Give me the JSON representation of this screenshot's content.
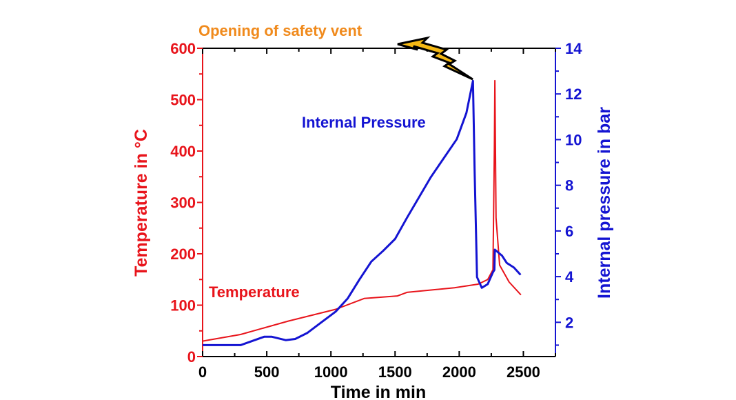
{
  "chart_data": {
    "type": "line",
    "title": "",
    "xlabel": "Time in min",
    "ylabel_left": "Temperature in °C",
    "ylabel_right": "Internal pressure in bar",
    "xlim": [
      0,
      2750
    ],
    "ylim_left": [
      0,
      600
    ],
    "ylim_right": [
      0.5,
      14
    ],
    "x_ticks": [
      0,
      500,
      1000,
      1500,
      2000,
      2500
    ],
    "y_ticks_left": [
      0,
      100,
      200,
      300,
      400,
      500,
      600
    ],
    "y_ticks_right": [
      2,
      4,
      6,
      8,
      10,
      12,
      14
    ],
    "grid": false,
    "colors": {
      "temperature": "#e8141b",
      "pressure": "#1414d2",
      "annotation": "#f08a1c",
      "bolt": "#f5b914"
    },
    "annotations": {
      "vent": "Opening of safety vent"
    },
    "series": [
      {
        "name": "Temperature",
        "axis": "left",
        "x": [
          0,
          296,
          667,
          1037,
          1259,
          1519,
          1593,
          1963,
          2148,
          2222,
          2263,
          2274,
          2278,
          2287,
          2315,
          2389,
          2481
        ],
        "y": [
          30,
          43,
          69,
          92,
          113,
          118,
          125,
          134,
          141,
          150,
          169,
          409,
          537,
          270,
          178,
          145,
          120
        ]
      },
      {
        "name": "Internal Pressure",
        "axis": "right",
        "x": [
          0,
          296,
          481,
          537,
          648,
          722,
          815,
          926,
          1037,
          1130,
          1222,
          1315,
          1407,
          1500,
          1593,
          1778,
          1981,
          2056,
          2107,
          2120,
          2139,
          2176,
          2222,
          2263,
          2274,
          2278,
          2333,
          2370,
          2426,
          2478
        ],
        "y": [
          1.0,
          1.0,
          1.37,
          1.37,
          1.22,
          1.27,
          1.53,
          2.0,
          2.47,
          3.04,
          3.87,
          4.66,
          5.13,
          5.65,
          6.58,
          8.35,
          10.02,
          11.17,
          12.57,
          8.67,
          3.98,
          3.51,
          3.67,
          4.19,
          4.29,
          5.18,
          4.92,
          4.6,
          4.4,
          4.08
        ]
      }
    ]
  }
}
